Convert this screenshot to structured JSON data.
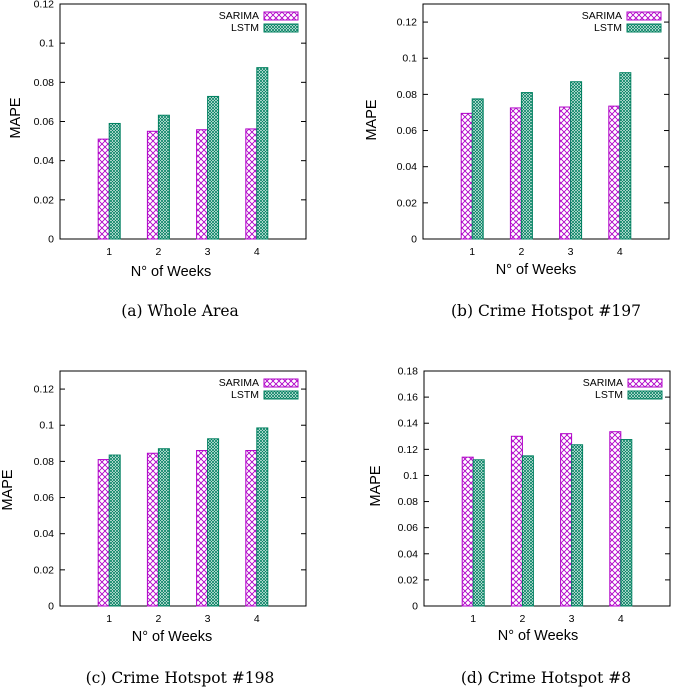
{
  "colors": {
    "sarima": "#b000c8",
    "lstm": "#008060"
  },
  "chart_data": [
    {
      "type": "bar",
      "caption": "(a) Whole Area",
      "xlabel": "N° of Weeks",
      "ylabel": "MAPE",
      "categories": [
        "1",
        "2",
        "3",
        "4"
      ],
      "ylim": [
        0,
        0.12
      ],
      "yticks": [
        "0",
        "0.02",
        "0.04",
        "0.06",
        "0.08",
        "0.1",
        "0.12"
      ],
      "legend_position": "top-right",
      "series": [
        {
          "name": "SARIMA",
          "values": [
            0.051,
            0.055,
            0.0558,
            0.0562
          ]
        },
        {
          "name": "LSTM",
          "values": [
            0.059,
            0.0632,
            0.0728,
            0.0875
          ]
        }
      ]
    },
    {
      "type": "bar",
      "caption": "(b) Crime Hotspot #197",
      "xlabel": "N° of Weeks",
      "ylabel": "MAPE",
      "categories": [
        "1",
        "2",
        "3",
        "4"
      ],
      "ylim": [
        0,
        0.13
      ],
      "yticks": [
        "0",
        "0.02",
        "0.04",
        "0.06",
        "0.08",
        "0.1",
        "0.12"
      ],
      "legend_position": "top-right",
      "series": [
        {
          "name": "SARIMA",
          "values": [
            0.0695,
            0.0725,
            0.073,
            0.0735
          ]
        },
        {
          "name": "LSTM",
          "values": [
            0.0775,
            0.081,
            0.087,
            0.092
          ]
        }
      ]
    },
    {
      "type": "bar",
      "caption": "(c) Crime Hotspot #198",
      "xlabel": "N° of Weeks",
      "ylabel": "MAPE",
      "categories": [
        "1",
        "2",
        "3",
        "4"
      ],
      "ylim": [
        0,
        0.13
      ],
      "yticks": [
        "0",
        "0.02",
        "0.04",
        "0.06",
        "0.08",
        "0.1",
        "0.12"
      ],
      "legend_position": "top-right",
      "series": [
        {
          "name": "SARIMA",
          "values": [
            0.081,
            0.0845,
            0.086,
            0.086
          ]
        },
        {
          "name": "LSTM",
          "values": [
            0.0835,
            0.087,
            0.0925,
            0.0985
          ]
        }
      ]
    },
    {
      "type": "bar",
      "caption": "(d) Crime Hotspot #8",
      "xlabel": "N° of Weeks",
      "ylabel": "MAPE",
      "categories": [
        "1",
        "2",
        "3",
        "4"
      ],
      "ylim": [
        0,
        0.18
      ],
      "yticks": [
        "0",
        "0.02",
        "0.04",
        "0.06",
        "0.08",
        "0.1",
        "0.12",
        "0.14",
        "0.16",
        "0.18"
      ],
      "legend_position": "top-right",
      "series": [
        {
          "name": "SARIMA",
          "values": [
            0.114,
            0.13,
            0.132,
            0.1335
          ]
        },
        {
          "name": "LSTM",
          "values": [
            0.112,
            0.115,
            0.1235,
            0.1275
          ]
        }
      ]
    }
  ]
}
